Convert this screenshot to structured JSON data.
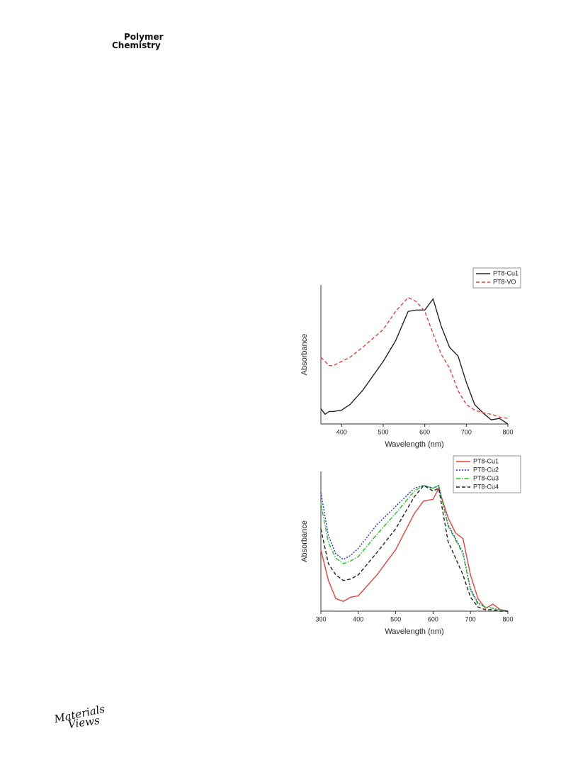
{
  "header": {
    "journal_line1": "Polymer",
    "journal_line2": "Chemistry"
  },
  "footer": {
    "logo_line1": "Materials",
    "logo_line2": "Views"
  },
  "chart_data": [
    {
      "type": "line",
      "xlabel": "Wavelength (nm)",
      "ylabel": "Absorbance",
      "x": [
        350,
        360,
        370,
        380,
        400,
        420,
        450,
        500,
        530,
        560,
        580,
        600,
        620,
        640,
        660,
        680,
        700,
        720,
        740,
        760,
        780,
        800
      ],
      "xlim": [
        350,
        800
      ],
      "xticks": [
        400,
        500,
        600,
        700,
        800
      ],
      "ylim": [
        0,
        1
      ],
      "legend": "upper-right",
      "series": [
        {
          "name": "PT8-Cu1",
          "color": "#222222",
          "dash": "solid",
          "values": [
            0.11,
            0.07,
            0.09,
            0.09,
            0.1,
            0.14,
            0.24,
            0.45,
            0.6,
            0.81,
            0.82,
            0.82,
            0.9,
            0.7,
            0.55,
            0.49,
            0.3,
            0.14,
            0.08,
            0.03,
            0.04,
            0.0
          ]
        },
        {
          "name": "PT8-VO",
          "color": "#e8413c",
          "dash": "dashed",
          "values": [
            0.48,
            0.45,
            0.42,
            0.42,
            0.45,
            0.48,
            0.55,
            0.68,
            0.81,
            0.91,
            0.88,
            0.81,
            0.65,
            0.5,
            0.4,
            0.24,
            0.14,
            0.1,
            0.08,
            0.07,
            0.05,
            0.04
          ]
        }
      ]
    },
    {
      "type": "line",
      "xlabel": "Wavelength (nm)",
      "ylabel": "Absorbance",
      "x": [
        300,
        320,
        340,
        360,
        380,
        400,
        450,
        500,
        550,
        575,
        600,
        615,
        640,
        660,
        680,
        700,
        720,
        740,
        760,
        780,
        800
      ],
      "xlim": [
        300,
        800
      ],
      "xticks": [
        300,
        400,
        500,
        600,
        700,
        800
      ],
      "ylim": [
        0,
        1
      ],
      "legend": "upper-right",
      "series": [
        {
          "name": "PT8-Cu1",
          "color": "#e8413c",
          "dash": "solid",
          "values": [
            0.44,
            0.22,
            0.09,
            0.07,
            0.1,
            0.11,
            0.26,
            0.44,
            0.7,
            0.79,
            0.8,
            0.88,
            0.67,
            0.56,
            0.52,
            0.26,
            0.09,
            0.02,
            0.05,
            0.01,
            0
          ]
        },
        {
          "name": "PT8-Cu2",
          "color": "#2a2ae0",
          "dash": "dotted",
          "values": [
            0.85,
            0.54,
            0.41,
            0.37,
            0.4,
            0.45,
            0.62,
            0.75,
            0.88,
            0.9,
            0.88,
            0.9,
            0.62,
            0.52,
            0.42,
            0.16,
            0.06,
            0.03,
            0.02,
            0.01,
            0
          ]
        },
        {
          "name": "PT8-Cu3",
          "color": "#22c322",
          "dash": "dashdot",
          "values": [
            0.77,
            0.49,
            0.38,
            0.34,
            0.36,
            0.39,
            0.55,
            0.7,
            0.86,
            0.9,
            0.88,
            0.9,
            0.61,
            0.51,
            0.41,
            0.15,
            0.05,
            0.03,
            0.02,
            0.01,
            0
          ]
        },
        {
          "name": "PT8-Cu4",
          "color": "#222222",
          "dash": "dashed",
          "values": [
            0.59,
            0.34,
            0.26,
            0.22,
            0.23,
            0.26,
            0.42,
            0.59,
            0.82,
            0.9,
            0.86,
            0.88,
            0.5,
            0.38,
            0.26,
            0.1,
            0.03,
            0.01,
            0.01,
            0,
            0
          ]
        }
      ]
    }
  ]
}
